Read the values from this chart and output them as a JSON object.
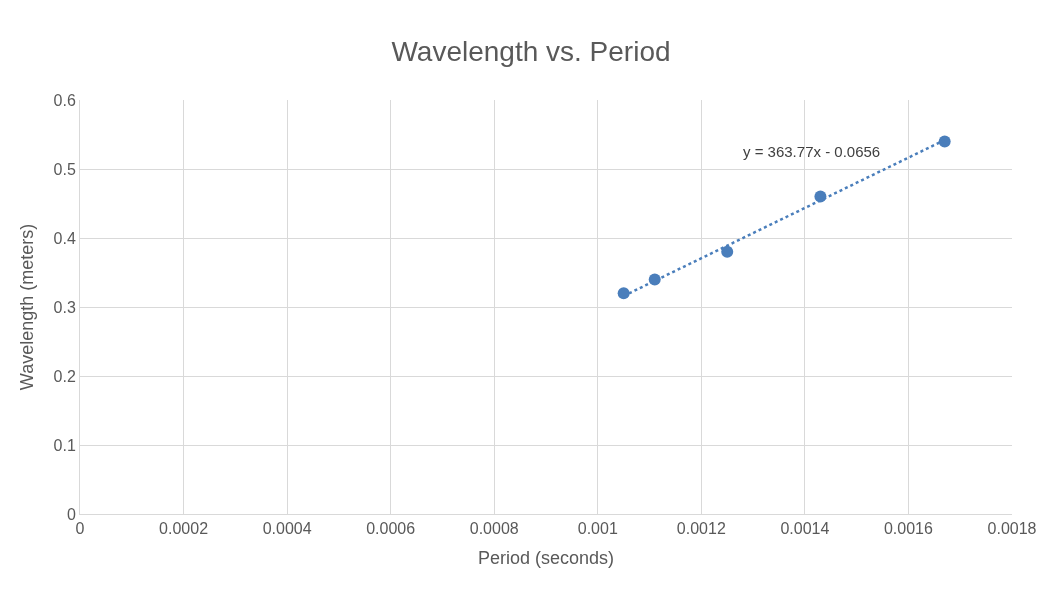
{
  "chart_data": {
    "type": "scatter",
    "title": "Wavelength vs. Period",
    "xlabel": "Period (seconds)",
    "ylabel": "Wavelength (meters)",
    "series": [
      {
        "color": "#4a7ebb",
        "x": [
          0.00105,
          0.00111,
          0.00125,
          0.00143,
          0.00167
        ],
        "values": [
          0.32,
          0.34,
          0.38,
          0.46,
          0.54
        ],
        "marker": "circle"
      },
      {
        "type": "line",
        "color": "#4a7ebb",
        "x": [
          0.00105,
          0.00167
        ],
        "values": [
          0.316,
          0.542
        ],
        "line_style": "dotted",
        "marker": "none"
      }
    ],
    "annotations": [
      "y = 363.77x - 0.0656"
    ],
    "xlim": [
      0,
      0.0018
    ],
    "xticks": [
      0,
      0.0002,
      0.0004,
      0.0006,
      0.0008,
      0.001,
      0.0012,
      0.0014,
      0.0016,
      0.0018
    ],
    "ylim": [
      0,
      0.6
    ],
    "yticks": [
      0,
      0.1,
      0.2,
      0.3,
      0.4,
      0.5,
      0.6
    ],
    "grid": true,
    "legend": false
  }
}
